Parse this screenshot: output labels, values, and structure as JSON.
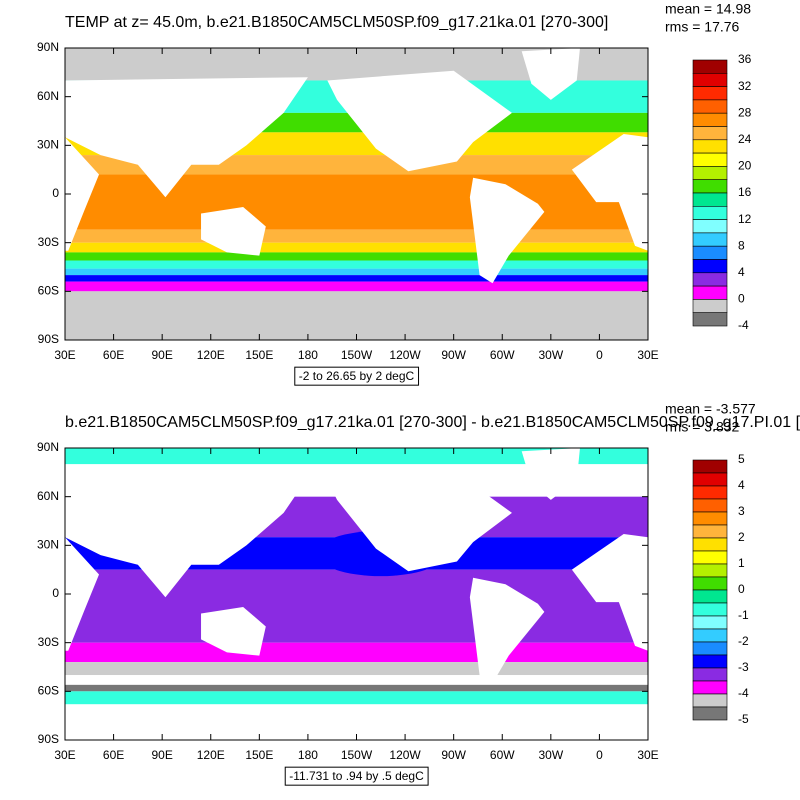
{
  "lon_labels": [
    "30E",
    "60E",
    "90E",
    "120E",
    "150E",
    "180",
    "150W",
    "120W",
    "90W",
    "60W",
    "30W",
    "0",
    "30E"
  ],
  "lat_labels": [
    "90N",
    "60N",
    "30N",
    "0",
    "30S",
    "60S",
    "90S"
  ],
  "colorbar_colors": [
    "#a00000",
    "#e00000",
    "#ff2a00",
    "#ff6000",
    "#ff8c00",
    "#ffb43c",
    "#ffe000",
    "#ffff00",
    "#b4f000",
    "#40dd00",
    "#00e690",
    "#33ffdd",
    "#80ffff",
    "#33ccff",
    "#1a8cff",
    "#0000ff",
    "#8a2be2",
    "#ff00ff",
    "#cccccc",
    "#777777"
  ],
  "panels": [
    {
      "title": "TEMP at z=  45.0m, b.e21.B1850CAM5CLM50SP.f09_g17.21ka.01 [270-300]",
      "mean": "mean = 14.98",
      "rms": "rms = 17.76",
      "levels": [
        36,
        32,
        28,
        24,
        20,
        16,
        12,
        8,
        4,
        0,
        -4
      ],
      "info": "-2 to 26.65 by 2 degC"
    },
    {
      "title": "b.e21.B1850CAM5CLM50SP.f09_g17.21ka.01 [270-300] - b.e21.B1850CAM5CLM50SP.f09_g17.PI.01 [",
      "mean": "mean = -3.577",
      "rms": "rms = 3.832",
      "levels": [
        5,
        4,
        3,
        2,
        1,
        0,
        -1,
        -2,
        -3,
        -4,
        -5
      ],
      "info": "-11.731 to .94 by .5 degC"
    }
  ]
}
